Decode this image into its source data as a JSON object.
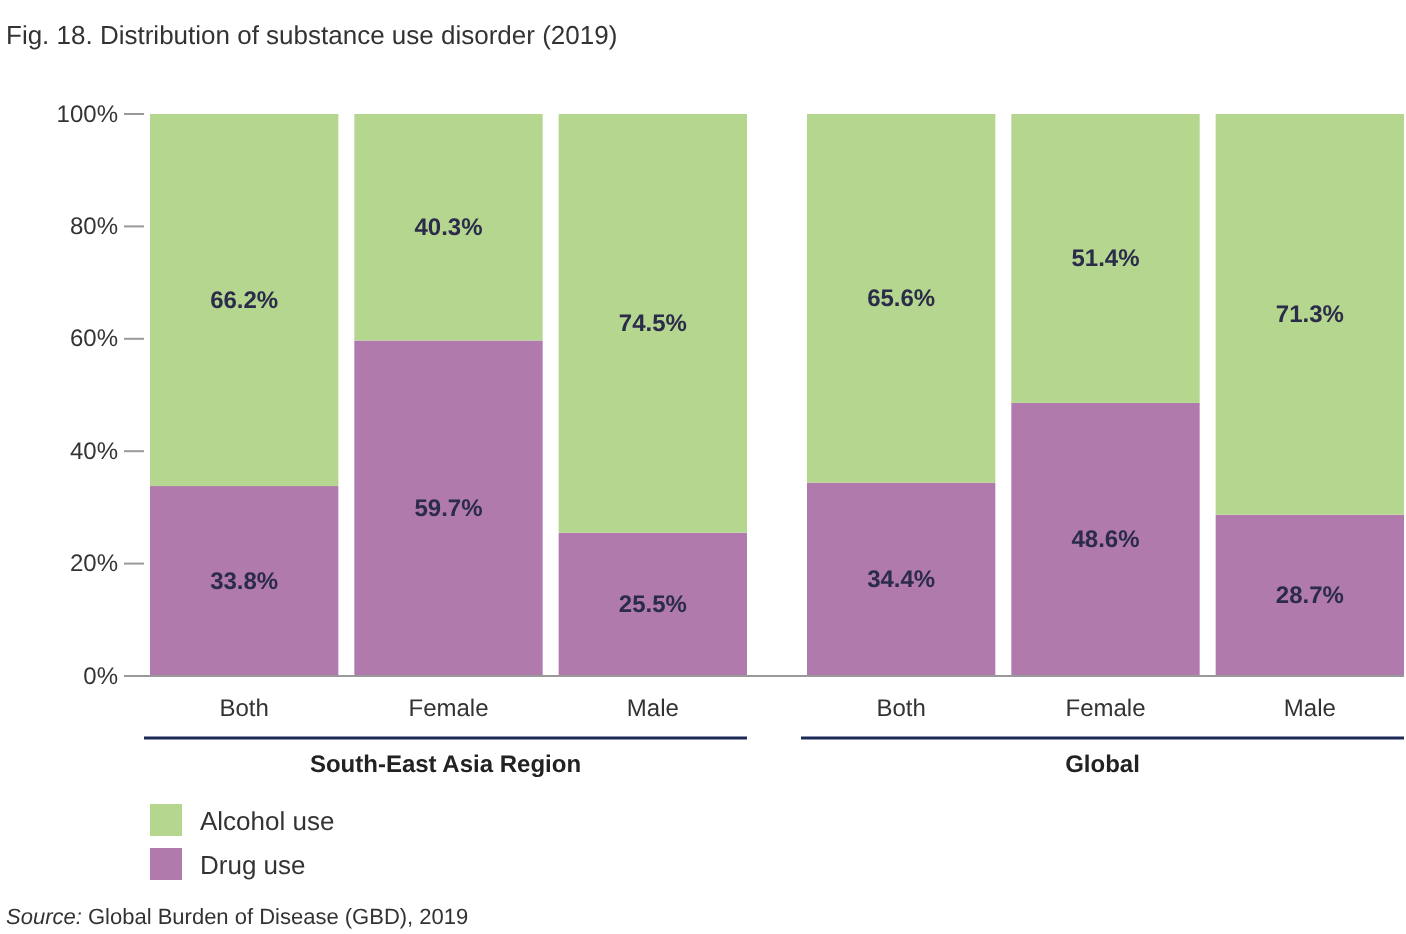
{
  "chart_data": {
    "type": "bar",
    "title": "Fig. 18. Distribution of substance use disorder (2019)",
    "categories": [
      "Both",
      "Female",
      "Male",
      "Both",
      "Female",
      "Male"
    ],
    "stacked": true,
    "legend": "bottom",
    "grid": false,
    "ylim": [
      0,
      100
    ],
    "yticks": [
      {
        "value": 0,
        "label": "0%"
      },
      {
        "value": 20,
        "label": "20%"
      },
      {
        "value": 40,
        "label": "40%"
      },
      {
        "value": 60,
        "label": "60%"
      },
      {
        "value": 80,
        "label": "80%"
      },
      {
        "value": 100,
        "label": "100%"
      }
    ],
    "series": [
      {
        "name": "Drug use",
        "color": "#b07aad",
        "values": [
          33.8,
          59.7,
          25.5,
          34.4,
          48.6,
          28.7
        ],
        "value_labels": [
          "33.8%",
          "59.7%",
          "25.5%",
          "34.4%",
          "48.6%",
          "28.7%"
        ]
      },
      {
        "name": "Alcohol use",
        "color": "#b5d68e",
        "values": [
          66.2,
          40.3,
          74.5,
          65.6,
          51.4,
          71.3
        ],
        "value_labels": [
          "66.2%",
          "40.3%",
          "74.5%",
          "65.6%",
          "51.4%",
          "71.3%"
        ]
      }
    ],
    "annotations": [
      "South-East Asia Region",
      "Global",
      "Source: Global Burden of Disease (GBD), 2019"
    ]
  }
}
